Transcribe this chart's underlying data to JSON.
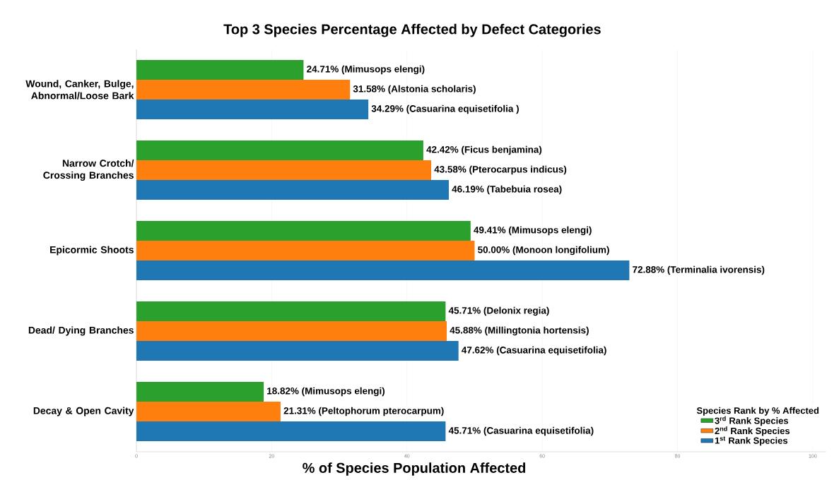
{
  "chart_data": {
    "type": "bar",
    "orientation": "horizontal",
    "title": "Top 3 Species Percentage Affected by Defect Categories",
    "xlabel": "%  of Species Population Affected",
    "legend_title": "Species Rank by % Affected",
    "categories": [
      "Wound, Canker, Bulge, Abnormal/Loose Bark",
      "Narrow Crotch/ Crossing Branches",
      "Epicormic Shoots",
      "Dead/ Dying Branches",
      "Decay & Open Cavity"
    ],
    "series": [
      {
        "name": "3$^{rd}$ Rank Species",
        "color": "#2ca02c",
        "values": [
          24.71,
          42.42,
          49.41,
          45.71,
          18.82
        ],
        "value_labels": [
          "24.71%  (Mimusops elengi)",
          "42.42%  (Ficus benjamina)",
          "49.41%  (Mimusops elengi)",
          "45.71%  (Delonix regia)",
          "18.82%  (Mimusops elengi)"
        ]
      },
      {
        "name": "2$^{nd}$ Rank Species",
        "color": "#ff7f0e",
        "values": [
          31.58,
          43.58,
          50.0,
          45.88,
          21.31
        ],
        "value_labels": [
          "31.58%  (Alstonia scholaris)",
          "43.58%  (Pterocarpus indicus)",
          "50.00%  (Monoon longifolium)",
          "45.88%  (Millingtonia hortensis)",
          "21.31%  (Peltophorum pterocarpum)"
        ]
      },
      {
        "name": "1$^{st}$ Rank Species",
        "color": "#1f77b4",
        "values": [
          34.29,
          46.19,
          72.88,
          47.62,
          45.71
        ],
        "value_labels": [
          "34.29%  (Casuarina equisetifolia )",
          "46.19%  (Tabebuia rosea)",
          "72.88%  (Terminalia ivorensis)",
          "47.62%  (Casuarina equisetifolia)",
          "45.71%  (Casuarina equisetifolia)"
        ]
      }
    ],
    "xlim": [
      0,
      102
    ],
    "xticks": [
      0,
      20,
      40,
      60,
      80,
      100
    ],
    "grid": "x",
    "legend": "bottom right"
  }
}
